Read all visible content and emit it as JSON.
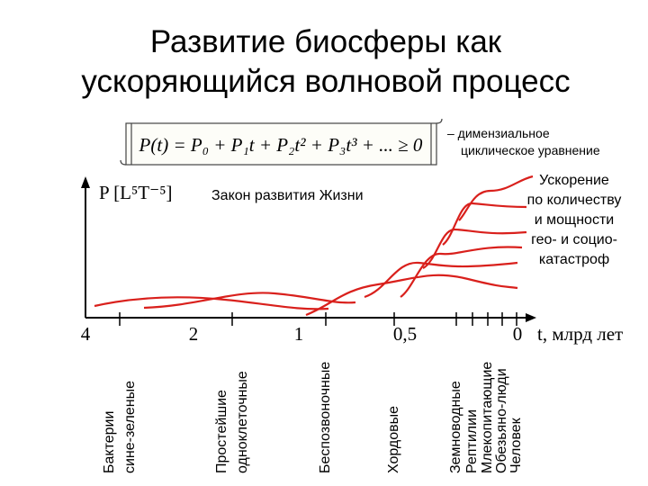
{
  "title_lines": [
    "Развитие биосферы как",
    "ускоряющийся волновой процесс"
  ],
  "formula": "P(t) = P₀ + P₁t + P₂t² + P₃t³ + ... ≥ 0",
  "formula_note": [
    "– димензиальное",
    "циклическое уравнение"
  ],
  "y_axis_label": "P [L⁵T⁻⁵]",
  "law_label": "Закон развития Жизни",
  "annotation_lines": [
    "Ускорение",
    "по количеству",
    "и мощности",
    "гео- и социо-",
    "катастроф"
  ],
  "x_ticks": [
    "4",
    "2",
    "1",
    "0,5",
    "0"
  ],
  "x_axis_label": "t, млрд лет",
  "taxa": [
    [
      "Бактерии",
      "сине-зеленые"
    ],
    [
      "Простейшие",
      "одноклеточные"
    ],
    [
      "Беспозвоночные"
    ],
    [
      "Хордовые"
    ],
    [
      "Земноводные"
    ],
    [
      "Рептилии"
    ],
    [
      "Млекопитающие"
    ],
    [
      "Обезьяно-люди"
    ],
    [
      "Человек"
    ]
  ]
}
